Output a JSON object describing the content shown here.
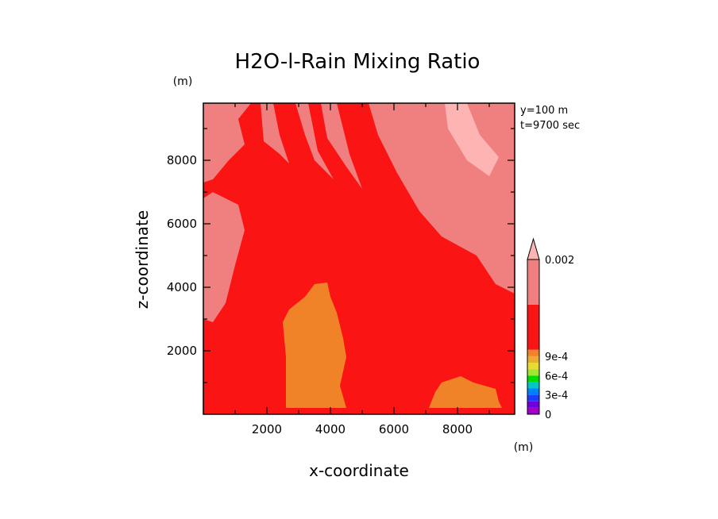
{
  "chart_data": {
    "type": "heatmap",
    "title": "H2O-l-Rain Mixing Ratio",
    "xlabel": "x-coordinate",
    "ylabel": "z-coordinate",
    "x_unit": "(m)",
    "y_unit": "(m)",
    "annotations": [
      "y=100 m",
      "t=9700 sec"
    ],
    "xlim": [
      0,
      9800
    ],
    "ylim": [
      0,
      9800
    ],
    "x_ticks": [
      {
        "value": 2000,
        "label": "2000"
      },
      {
        "value": 4000,
        "label": "4000"
      },
      {
        "value": 6000,
        "label": "6000"
      },
      {
        "value": 8000,
        "label": "8000"
      }
    ],
    "y_ticks": [
      {
        "value": 2000,
        "label": "2000"
      },
      {
        "value": 4000,
        "label": "4000"
      },
      {
        "value": 6000,
        "label": "6000"
      },
      {
        "value": 8000,
        "label": "8000"
      }
    ],
    "colorbar": {
      "levels": [
        0,
        0.0001,
        0.0002,
        0.0003,
        0.0004,
        0.0005,
        0.0006,
        0.0007,
        0.0008,
        0.0009,
        0.001,
        0.0015,
        0.002
      ],
      "colors": [
        "#a000c8",
        "#6e00dc",
        "#1e3cff",
        "#0082ff",
        "#00c8c8",
        "#00dc00",
        "#a0e632",
        "#e6dc32",
        "#e6af2d",
        "#f08228",
        "#fa1414",
        "#f08080",
        "#ffb4b4"
      ],
      "tick_labels": [
        {
          "value": 0,
          "label": "0"
        },
        {
          "value": 0.0003,
          "label": "3e-4"
        },
        {
          "value": 0.0006,
          "label": "6e-4"
        },
        {
          "value": 0.0009,
          "label": "9e-4"
        },
        {
          "value": 0.002,
          "label": "0.002"
        }
      ],
      "extend": "max"
    },
    "background_class": "#fa1414",
    "regions": [
      {
        "name": "orange-core",
        "fill": "#f08228",
        "points": [
          [
            2600,
            200
          ],
          [
            2600,
            1800
          ],
          [
            2500,
            2900
          ],
          [
            2700,
            3300
          ],
          [
            3200,
            3700
          ],
          [
            3500,
            4100
          ],
          [
            3900,
            4150
          ],
          [
            4000,
            3700
          ],
          [
            4200,
            3200
          ],
          [
            4400,
            2400
          ],
          [
            4500,
            1800
          ],
          [
            4300,
            900
          ],
          [
            4500,
            200
          ]
        ]
      },
      {
        "name": "orange-right",
        "fill": "#f08228",
        "points": [
          [
            7100,
            200
          ],
          [
            7300,
            700
          ],
          [
            7500,
            1000
          ],
          [
            8100,
            1200
          ],
          [
            8500,
            1000
          ],
          [
            9200,
            800
          ],
          [
            9300,
            400
          ],
          [
            9400,
            200
          ]
        ]
      },
      {
        "name": "salmon-left",
        "fill": "#f08080",
        "points": [
          [
            0,
            6800
          ],
          [
            300,
            7000
          ],
          [
            1100,
            6600
          ],
          [
            1300,
            5800
          ],
          [
            1000,
            4700
          ],
          [
            700,
            3500
          ],
          [
            300,
            2900
          ],
          [
            0,
            3000
          ]
        ]
      },
      {
        "name": "salmon-top-left",
        "fill": "#f08080",
        "points": [
          [
            0,
            9800
          ],
          [
            0,
            7300
          ],
          [
            300,
            7400
          ],
          [
            800,
            8000
          ],
          [
            1300,
            8500
          ],
          [
            1100,
            9300
          ],
          [
            1500,
            9800
          ]
        ]
      },
      {
        "name": "salmon-streak-1",
        "fill": "#f08080",
        "points": [
          [
            1800,
            9800
          ],
          [
            1900,
            8600
          ],
          [
            2400,
            8200
          ],
          [
            2700,
            7900
          ],
          [
            2400,
            8800
          ],
          [
            2200,
            9800
          ]
        ]
      },
      {
        "name": "salmon-streak-2",
        "fill": "#f08080",
        "points": [
          [
            2900,
            9800
          ],
          [
            3200,
            8800
          ],
          [
            3500,
            8000
          ],
          [
            4100,
            7400
          ],
          [
            3600,
            8300
          ],
          [
            3300,
            9800
          ]
        ]
      },
      {
        "name": "salmon-streak-3",
        "fill": "#f08080",
        "points": [
          [
            3700,
            9800
          ],
          [
            3900,
            8700
          ],
          [
            4500,
            7800
          ],
          [
            5000,
            7100
          ],
          [
            4600,
            8200
          ],
          [
            4200,
            9800
          ]
        ]
      },
      {
        "name": "salmon-right-upper",
        "fill": "#f08080",
        "points": [
          [
            5200,
            9800
          ],
          [
            5500,
            8800
          ],
          [
            6100,
            7600
          ],
          [
            6800,
            6400
          ],
          [
            7500,
            5600
          ],
          [
            8600,
            5000
          ],
          [
            9200,
            4100
          ],
          [
            9800,
            3800
          ],
          [
            9800,
            9800
          ]
        ]
      },
      {
        "name": "pink-peak",
        "fill": "#ffb4b4",
        "points": [
          [
            7600,
            9800
          ],
          [
            7700,
            9000
          ],
          [
            8300,
            8000
          ],
          [
            9000,
            7500
          ],
          [
            9300,
            8100
          ],
          [
            8700,
            8800
          ],
          [
            8300,
            9800
          ]
        ]
      }
    ]
  }
}
